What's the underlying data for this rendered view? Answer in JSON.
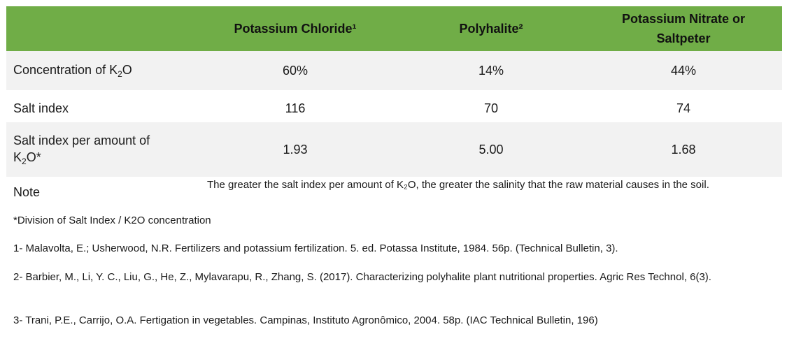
{
  "header": {
    "col1": "Potassium  Chloride¹",
    "col2": "Polyhalite²",
    "col3_line1": "Potassium Nitrate or",
    "col3_line2": "Saltpeter"
  },
  "rows": [
    {
      "label_prefix": "Concentration of K",
      "label_sub": "2",
      "label_suffix": "O",
      "values": [
        "60%",
        "14%",
        "44%"
      ]
    },
    {
      "label": "Salt index",
      "values": [
        "116",
        "70",
        "74"
      ]
    },
    {
      "label_line1": "Salt index per amount of",
      "label_prefix": "K",
      "label_sub": "2",
      "label_suffix": "O*",
      "values": [
        "1.93",
        "5.00",
        "1.68"
      ]
    }
  ],
  "note": {
    "label": "Note",
    "text": "The greater the salt index per amount of K₂O, the greater the salinity that the raw material causes in the soil."
  },
  "footnotes": {
    "asterisk": "*Division of Salt Index / K2O concentration",
    "ref1": "1- Malavolta, E.; Usherwood, N.R. Fertilizers and potassium fertilization. 5. ed. Potassa Institute, 1984. 56p. (Technical Bulletin, 3).",
    "ref2": "2- Barbier, M., Li, Y. C., Liu, G., He, Z., Mylavarapu, R., Zhang, S. (2017). Characterizing polyhalite plant nutritional properties. Agric Res Technol, 6(3).",
    "ref3": "3- Trani, P.E., Carrijo, O.A. Fertigation in vegetables. Campinas, Instituto Agronômico, 2004. 58p. (IAC Technical Bulletin, 196)"
  },
  "colors": {
    "header_bg": "#70ad47",
    "band_bg": "#f2f2f2"
  }
}
